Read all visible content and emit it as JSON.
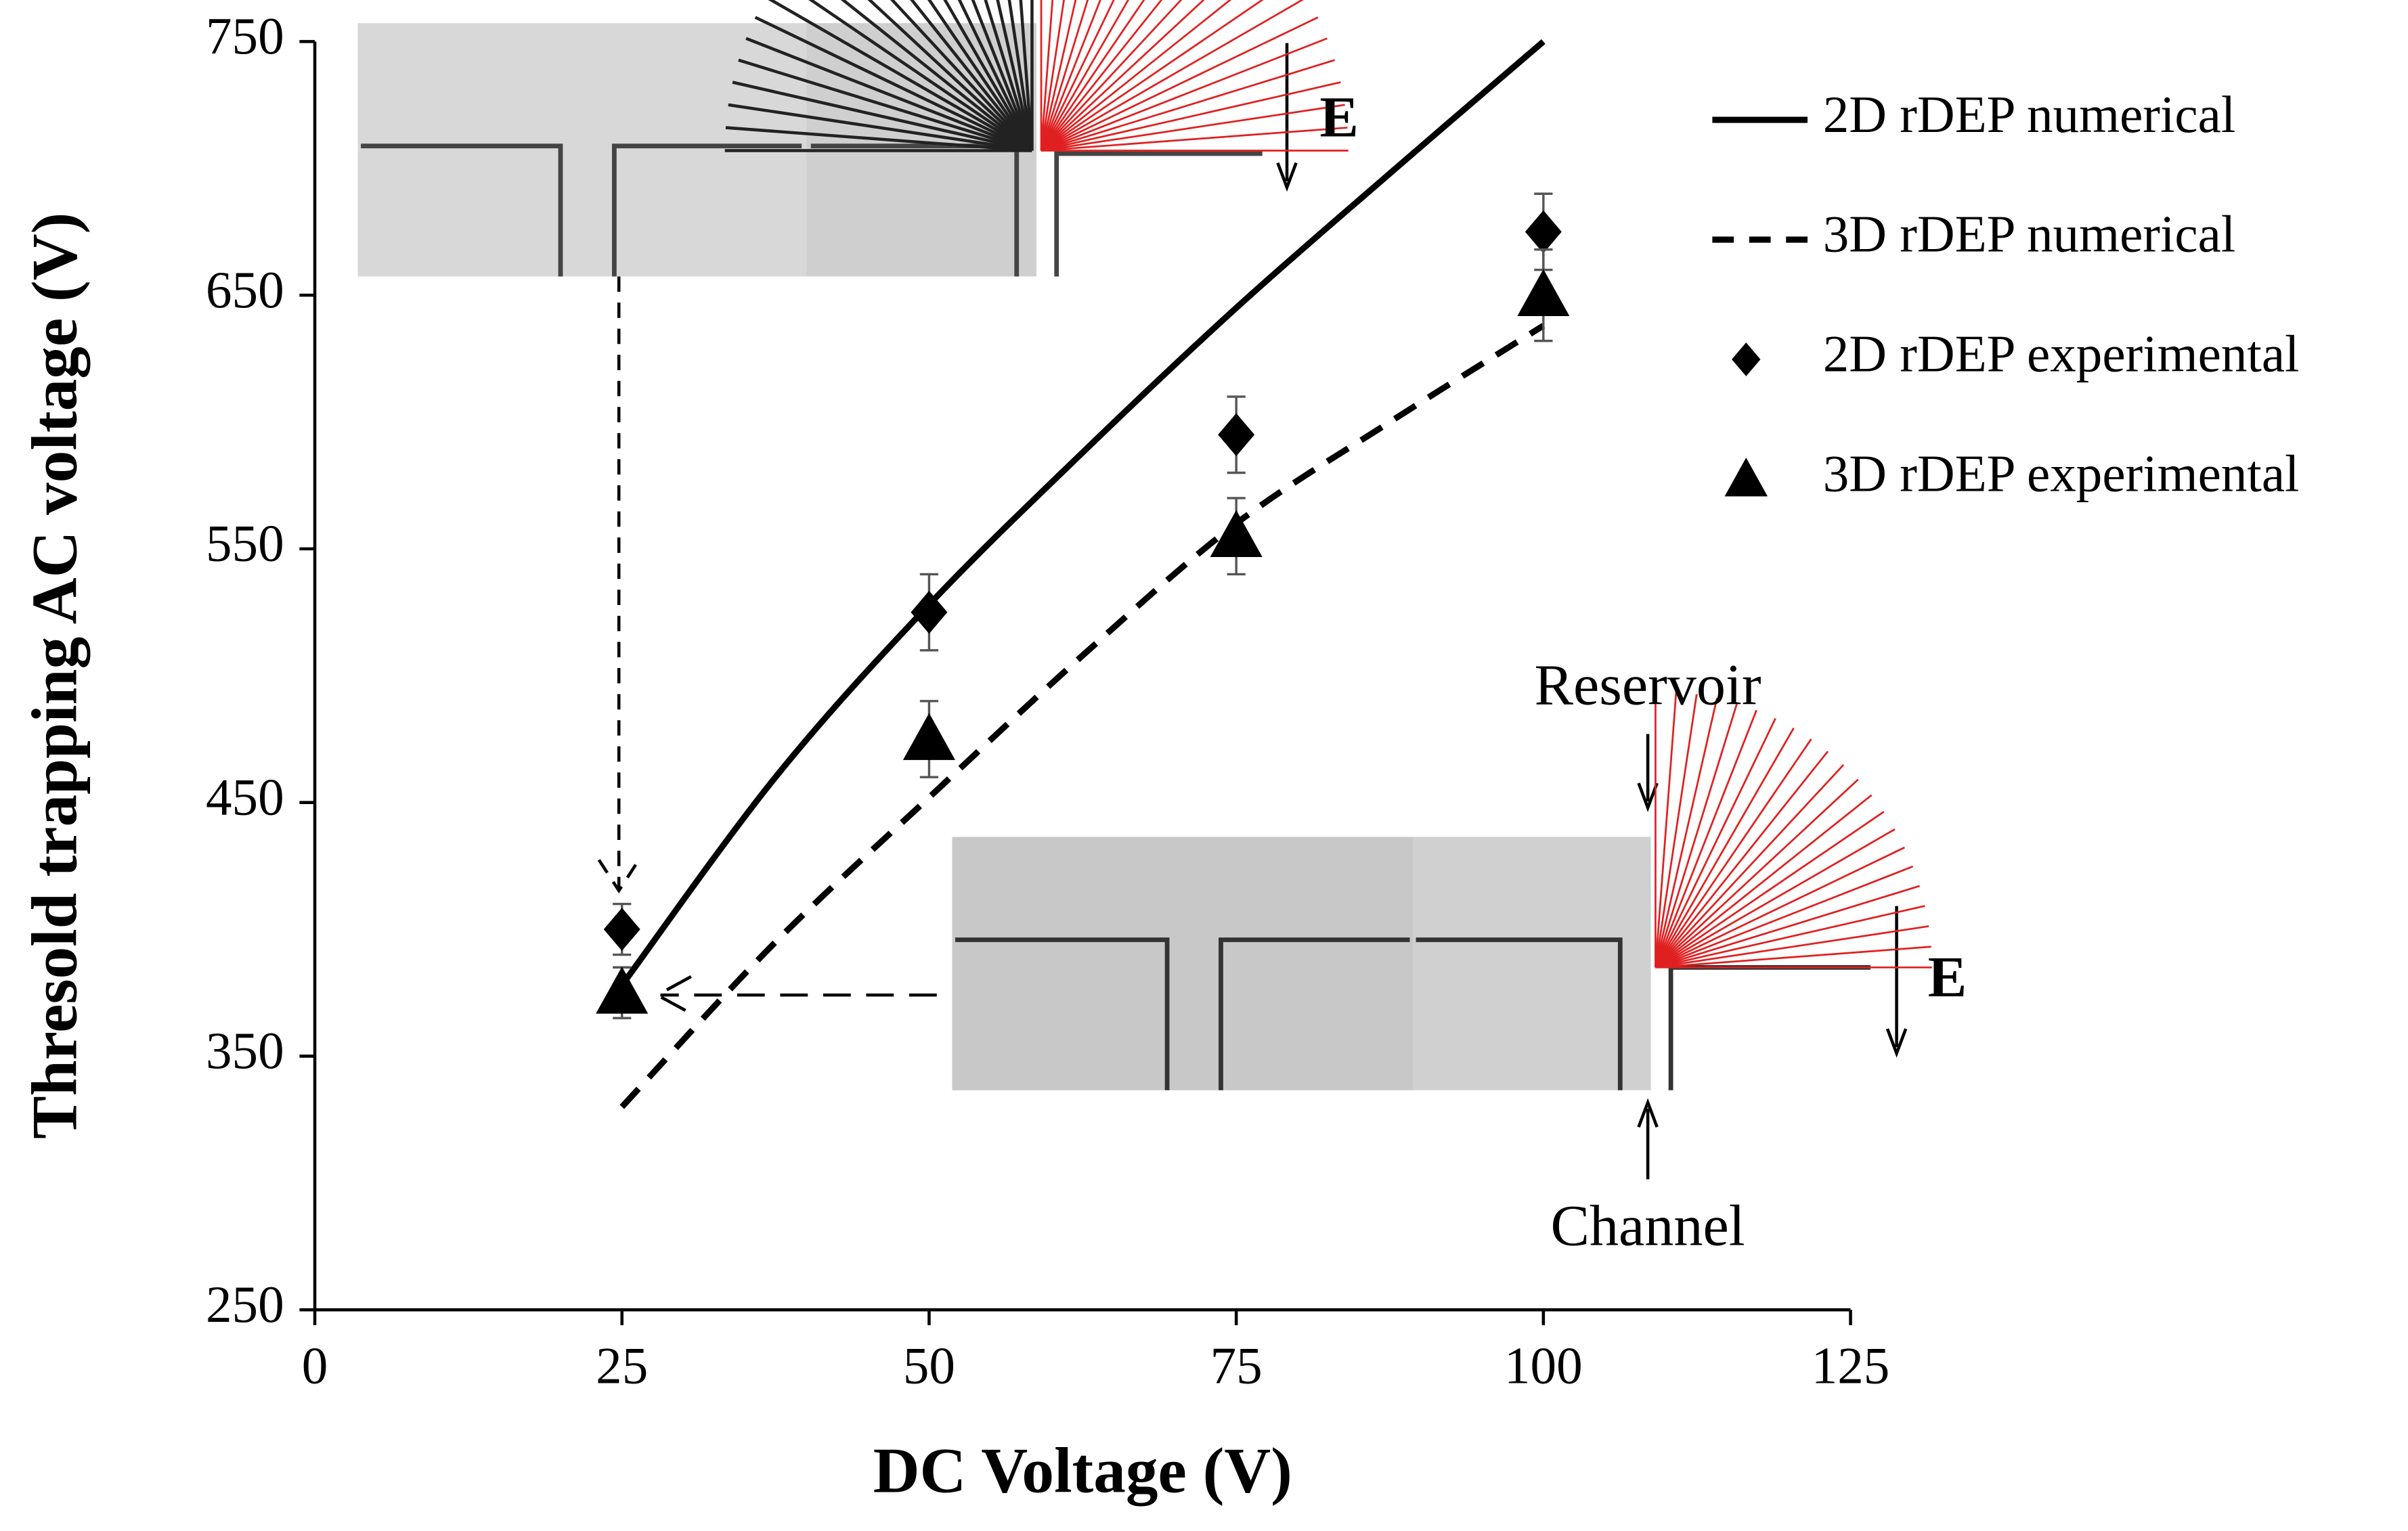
{
  "chart_data": {
    "type": "line",
    "x_label": "DC Voltage (V)",
    "y_label": "Thresold trapping AC voltage (V)",
    "xlim": [
      0,
      125
    ],
    "xticks": [
      0,
      25,
      50,
      75,
      100,
      125
    ],
    "ylim": [
      250,
      750
    ],
    "yticks": [
      250,
      350,
      450,
      550,
      650,
      750
    ],
    "legend": "upper right",
    "series": [
      {
        "name": "2D rDEP numerical",
        "color": "#000000",
        "line_style": "solid",
        "x": [
          25,
          37.5,
          50,
          62.5,
          75,
          87.5,
          100
        ],
        "values": [
          378,
          460,
          528,
          588,
          645,
          698,
          750
        ]
      },
      {
        "name": "3D rDEP numerical",
        "color": "#000000",
        "line_style": "dashed",
        "x": [
          25,
          37.5,
          50,
          62.5,
          75,
          87.5,
          100
        ],
        "values": [
          330,
          395,
          452,
          508,
          560,
          600,
          638
        ]
      },
      {
        "name": "2D rDEP experimental",
        "color": "#000000",
        "marker": "diamond",
        "x": [
          25,
          50,
          75,
          100
        ],
        "values": [
          400,
          525,
          595,
          675
        ],
        "errors": [
          10,
          15,
          15,
          15
        ]
      },
      {
        "name": "3D rDEP experimental",
        "color": "#000000",
        "marker": "triangle",
        "x": [
          25,
          50,
          75,
          100
        ],
        "values": [
          375,
          475,
          555,
          650
        ],
        "errors": [
          10,
          15,
          15,
          18
        ]
      }
    ],
    "annotations": [
      "E",
      "E",
      "Reservoir",
      "Channel"
    ]
  }
}
